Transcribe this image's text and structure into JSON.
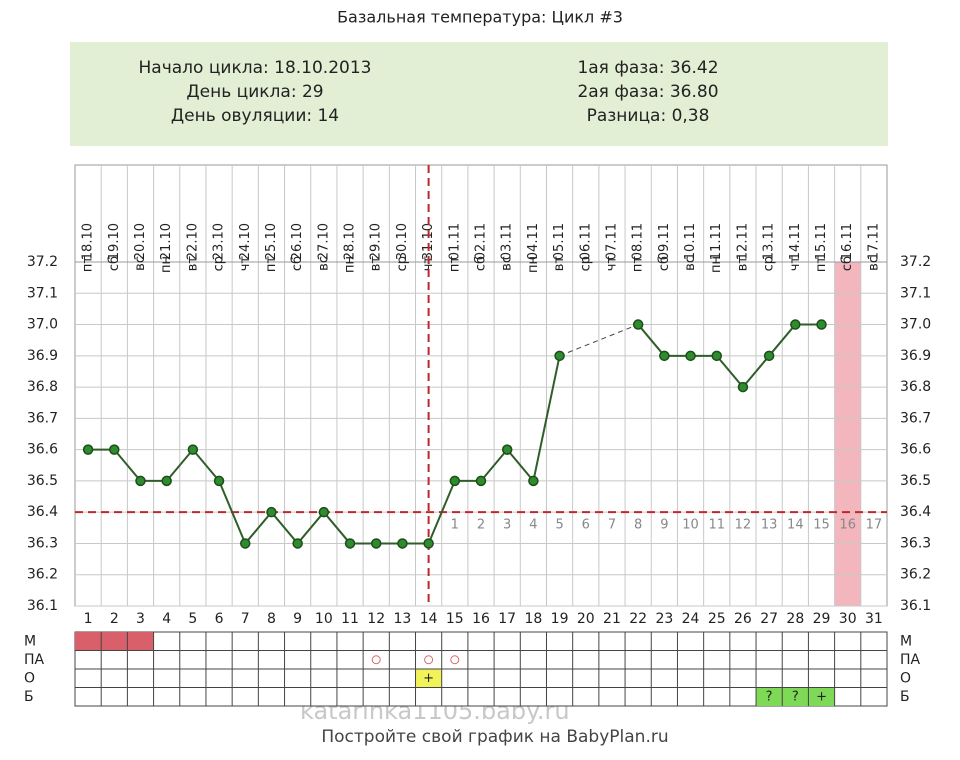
{
  "title": "Базальная температура: Цикл #3",
  "summary": {
    "left": [
      "Начало цикла: 18.10.2013",
      "День цикла: 29",
      "День овуляции: 14"
    ],
    "right": [
      "1ая фаза: 36.42",
      "2ая фаза: 36.80",
      "Разница: 0,38"
    ]
  },
  "chart_data": {
    "type": "line",
    "categories": [
      1,
      2,
      3,
      4,
      5,
      6,
      7,
      8,
      9,
      10,
      11,
      12,
      13,
      14,
      15,
      16,
      17,
      18,
      19,
      20,
      21,
      22,
      23,
      24,
      25,
      26,
      27,
      28,
      29,
      30,
      31
    ],
    "dates": [
      "18.10",
      "19.10",
      "20.10",
      "21.10",
      "22.10",
      "23.10",
      "24.10",
      "25.10",
      "26.10",
      "27.10",
      "28.10",
      "29.10",
      "30.10",
      "31.10",
      "01.11",
      "02.11",
      "03.11",
      "04.11",
      "05.11",
      "06.11",
      "07.11",
      "08.11",
      "09.11",
      "10.11",
      "11.11",
      "12.11",
      "13.11",
      "14.11",
      "15.11",
      "16.11",
      "17.11"
    ],
    "weekdays": [
      "пт",
      "сб",
      "вс",
      "пн",
      "вт",
      "ср",
      "чт",
      "пт",
      "сб",
      "вс",
      "пн",
      "вт",
      "ср",
      "чт",
      "пт",
      "сб",
      "вс",
      "пн",
      "вт",
      "ср",
      "чт",
      "пт",
      "сб",
      "вс",
      "пн",
      "вт",
      "ср",
      "чт",
      "пт",
      "сб",
      "вс"
    ],
    "values": [
      36.6,
      36.6,
      36.5,
      36.5,
      36.6,
      36.5,
      36.3,
      36.4,
      36.3,
      36.4,
      36.3,
      36.3,
      36.3,
      36.3,
      36.5,
      36.5,
      36.6,
      36.5,
      36.9,
      null,
      null,
      37.0,
      36.9,
      36.9,
      36.9,
      36.8,
      36.9,
      37.0,
      37.0,
      null,
      null
    ],
    "color": "#2f5e2a",
    "ylim": [
      36.1,
      37.2
    ],
    "yticks": [
      36.1,
      36.2,
      36.3,
      36.4,
      36.5,
      36.6,
      36.7,
      36.8,
      36.9,
      {
        "value": 37.0,
        "label": "37.0"
      },
      37.1,
      37.2
    ],
    "grid": true,
    "coverline": 36.4,
    "ovulation_day": 14,
    "phase2_day_labels": [
      1,
      2,
      3,
      4,
      5,
      6,
      7,
      8,
      9,
      10,
      11,
      12,
      13,
      14,
      15,
      16,
      17
    ],
    "highlight_days": [
      30
    ]
  },
  "marks_table": {
    "rows": [
      {
        "label": "М",
        "cells": [
          {
            "day": 1,
            "fill": "#d9606a"
          },
          {
            "day": 2,
            "fill": "#d9606a"
          },
          {
            "day": 3,
            "fill": "#d9606a"
          }
        ]
      },
      {
        "label": "ПА",
        "cells": [
          {
            "day": 12,
            "symbol": "circle"
          },
          {
            "day": 14,
            "symbol": "circle"
          },
          {
            "day": 15,
            "symbol": "circle"
          }
        ]
      },
      {
        "label": "О",
        "cells": [
          {
            "day": 14,
            "fill": "#f2f25a",
            "text": "+"
          }
        ]
      },
      {
        "label": "Б",
        "cells": [
          {
            "day": 27,
            "fill": "#7ed957",
            "text": "?"
          },
          {
            "day": 28,
            "fill": "#7ed957",
            "text": "?"
          },
          {
            "day": 29,
            "fill": "#7ed957",
            "text": "+"
          }
        ]
      }
    ]
  },
  "footer": {
    "watermark": "katarinka1105.baby.ru",
    "text": "Постройте свой график на BabyPlan.ru"
  }
}
